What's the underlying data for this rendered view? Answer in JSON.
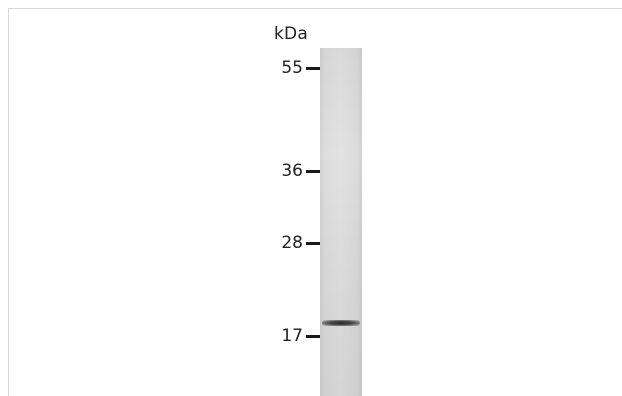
{
  "blot": {
    "unit_label": "kDa",
    "markers": [
      {
        "label": "55",
        "kda": 55
      },
      {
        "label": "36",
        "kda": 36
      },
      {
        "label": "28",
        "kda": 28
      },
      {
        "label": "17",
        "kda": 17
      }
    ],
    "lanes": [
      {
        "bands": [
          {
            "kda": 18.5,
            "intensity": "strong"
          }
        ]
      }
    ]
  }
}
